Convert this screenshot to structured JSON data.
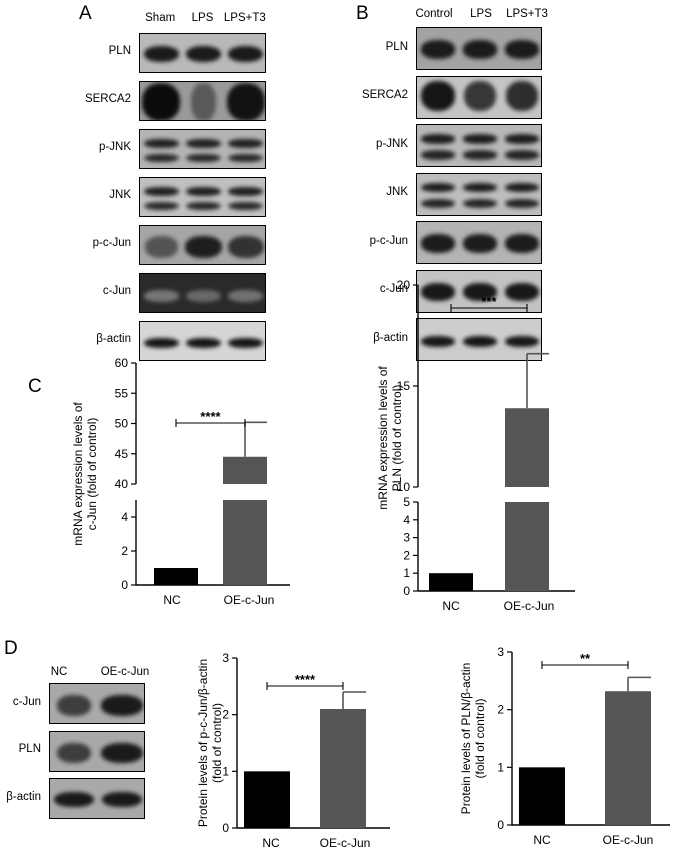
{
  "panels": {
    "a": {
      "letter": "A",
      "lanes": [
        "Sham",
        "LPS",
        "LPS+T3"
      ],
      "rows": [
        {
          "label": "PLN",
          "bg": "#b9b9b9",
          "band": "#1a1a1a",
          "style": "strong"
        },
        {
          "label": "SERCA2",
          "bg": "#9a9a9a",
          "band": "#0b0b0b",
          "style": "serca-a"
        },
        {
          "label": "p-JNK",
          "bg": "#b4b4b4",
          "band": "#202020",
          "style": "double"
        },
        {
          "label": "JNK",
          "bg": "#c0c0c0",
          "band": "#202020",
          "style": "double"
        },
        {
          "label": "p-c-Jun",
          "bg": "#a5a5a5",
          "band": "#1e1e1e",
          "style": "pcjun-a"
        },
        {
          "label": "c-Jun",
          "bg": "#2a2a2a",
          "band": "#8a8a8a",
          "style": "cjun-a"
        },
        {
          "label": "β-actin",
          "bg": "#d6d6d6",
          "band": "#151515",
          "style": "thin"
        }
      ]
    },
    "b": {
      "letter": "B",
      "lanes": [
        "Control",
        "LPS",
        "LPS+T3"
      ],
      "rows": [
        {
          "label": "PLN",
          "bg": "#a3a3a3",
          "band": "#1b1b1b",
          "style": "strong"
        },
        {
          "label": "SERCA2",
          "bg": "#c4c4c4",
          "band": "#151515",
          "style": "serca-b"
        },
        {
          "label": "p-JNK",
          "bg": "#b8b8b8",
          "band": "#1d1d1d",
          "style": "double"
        },
        {
          "label": "JNK",
          "bg": "#bdbdbd",
          "band": "#1d1d1d",
          "style": "double"
        },
        {
          "label": "p-c-Jun",
          "bg": "#b4b4b4",
          "band": "#1c1c1c",
          "style": "strong"
        },
        {
          "label": "c-Jun",
          "bg": "#c3c3c3",
          "band": "#181818",
          "style": "strong"
        },
        {
          "label": "β-actin",
          "bg": "#cdcdcd",
          "band": "#161616",
          "style": "thin"
        }
      ]
    },
    "c": {
      "letter": "C"
    },
    "d": {
      "letter": "D",
      "lanes": [
        "NC",
        "OE-c-Jun"
      ],
      "rows": [
        {
          "label": "c-Jun",
          "bg": "#a9a9a9",
          "band": "#1a1a1a",
          "style": "oe"
        },
        {
          "label": "PLN",
          "bg": "#a9a9a9",
          "band": "#1a1a1a",
          "style": "oe"
        },
        {
          "label": "β-actin",
          "bg": "#a9a9a9",
          "band": "#1a1a1a",
          "style": "strong2"
        }
      ]
    }
  },
  "chart_data": [
    {
      "type": "bar",
      "panel": "C",
      "categories": [
        "NC",
        "OE-c-Jun"
      ],
      "values": [
        1,
        44.5
      ],
      "errors": [
        0,
        5.7
      ],
      "colors": [
        "#000000",
        "#555555"
      ],
      "ylabel": "mRNA expression levels of c-Jun (fold of control)",
      "ylabel_lines": [
        "mRNA expression levels of",
        "c-Jun (fold of control)"
      ],
      "y_axis_break": true,
      "lower_segment": {
        "ylim": [
          0,
          5
        ],
        "ticks": [
          0,
          2,
          4
        ]
      },
      "upper_segment": {
        "ylim": [
          40,
          60
        ],
        "ticks": [
          40,
          45,
          50,
          55,
          60
        ]
      },
      "significance": "****"
    },
    {
      "type": "bar",
      "panel": "C",
      "categories": [
        "NC",
        "OE-c-Jun"
      ],
      "values": [
        1,
        13.9
      ],
      "errors": [
        0,
        2.7
      ],
      "colors": [
        "#000000",
        "#555555"
      ],
      "ylabel": "mRNA expression levels of PLN (fold of control)",
      "ylabel_lines": [
        "mRNA expression levels of",
        "PLN (fold of control)"
      ],
      "y_axis_break": true,
      "lower_segment": {
        "ylim": [
          0,
          5
        ],
        "ticks": [
          0,
          1,
          2,
          3,
          4,
          5
        ]
      },
      "upper_segment": {
        "ylim": [
          10,
          20
        ],
        "ticks": [
          10,
          15,
          20
        ]
      },
      "significance": "***"
    },
    {
      "type": "bar",
      "panel": "D",
      "categories": [
        "NC",
        "OE-c-Jun"
      ],
      "values": [
        1,
        2.1
      ],
      "errors": [
        0,
        0.3
      ],
      "colors": [
        "#000000",
        "#555555"
      ],
      "ylabel": "Protein levels of p-c-Jun/β-actin (fold of control)",
      "ylabel_lines": [
        "Protein levels of p-c-Jun/β-actin",
        "(fold of control)"
      ],
      "ylim": [
        0,
        3
      ],
      "ticks": [
        0,
        1,
        2,
        3
      ],
      "significance": "****"
    },
    {
      "type": "bar",
      "panel": "D",
      "categories": [
        "NC",
        "OE-c-Jun"
      ],
      "values": [
        1,
        2.32
      ],
      "errors": [
        0,
        0.24
      ],
      "colors": [
        "#000000",
        "#555555"
      ],
      "ylabel": "Protein levels of PLN/β-actin (fold of control)",
      "ylabel_lines": [
        "Protein levels of PLN/β-actin",
        "(fold of control)"
      ],
      "ylim": [
        0,
        3
      ],
      "ticks": [
        0,
        1,
        2,
        3
      ],
      "significance": "**"
    }
  ]
}
